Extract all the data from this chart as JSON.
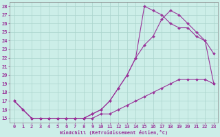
{
  "bg_color": "#cceee8",
  "line_color": "#993399",
  "grid_color": "#aad4cc",
  "xlabel": "Windchill (Refroidissement éolien,°C)",
  "xlim_min": -0.5,
  "xlim_max": 23.5,
  "ylim_min": 14.5,
  "ylim_max": 28.5,
  "xticks": [
    0,
    1,
    2,
    3,
    4,
    5,
    6,
    7,
    8,
    9,
    10,
    11,
    12,
    13,
    14,
    15,
    16,
    17,
    18,
    19,
    20,
    21,
    22,
    23
  ],
  "yticks": [
    15,
    16,
    17,
    18,
    19,
    20,
    21,
    22,
    23,
    24,
    25,
    26,
    27,
    28
  ],
  "curve1_x": [
    0,
    1,
    2,
    3,
    4,
    5,
    6,
    7,
    8,
    9,
    10,
    11,
    12,
    13,
    14,
    15,
    16,
    17,
    18,
    19,
    20,
    21,
    22,
    23
  ],
  "curve1_y": [
    17,
    16,
    15,
    15,
    15,
    15,
    15,
    15,
    15,
    15.5,
    16,
    17,
    18.5,
    20,
    22,
    23.5,
    24.5,
    26.5,
    27.5,
    27,
    26,
    25,
    24,
    22.5
  ],
  "curve2_x": [
    0,
    1,
    2,
    3,
    4,
    5,
    6,
    7,
    8,
    9,
    10,
    11,
    12,
    13,
    14,
    15,
    16,
    17,
    18,
    19,
    20,
    21,
    22,
    23
  ],
  "curve2_y": [
    17,
    16,
    15,
    15,
    15,
    15,
    15,
    15,
    15,
    15.5,
    16,
    17,
    18.5,
    20,
    22,
    28,
    27.5,
    27,
    26,
    25.5,
    25.5,
    24.5,
    24,
    19
  ],
  "curve3_x": [
    0,
    2,
    3,
    4,
    5,
    6,
    7,
    8,
    9,
    10,
    11,
    12,
    13,
    14,
    15,
    16,
    17,
    18,
    19,
    20,
    21,
    22,
    23
  ],
  "curve3_y": [
    17,
    15,
    15,
    15,
    15,
    15,
    15,
    15,
    15,
    15.5,
    15.5,
    16,
    16.5,
    17,
    17.5,
    18,
    18.5,
    19,
    19.5,
    19.5,
    19.5,
    19.5,
    19
  ],
  "marker": "D",
  "markersize": 2.0,
  "linewidth": 0.8,
  "tick_fontsize": 5.0,
  "xlabel_fontsize": 5.0
}
